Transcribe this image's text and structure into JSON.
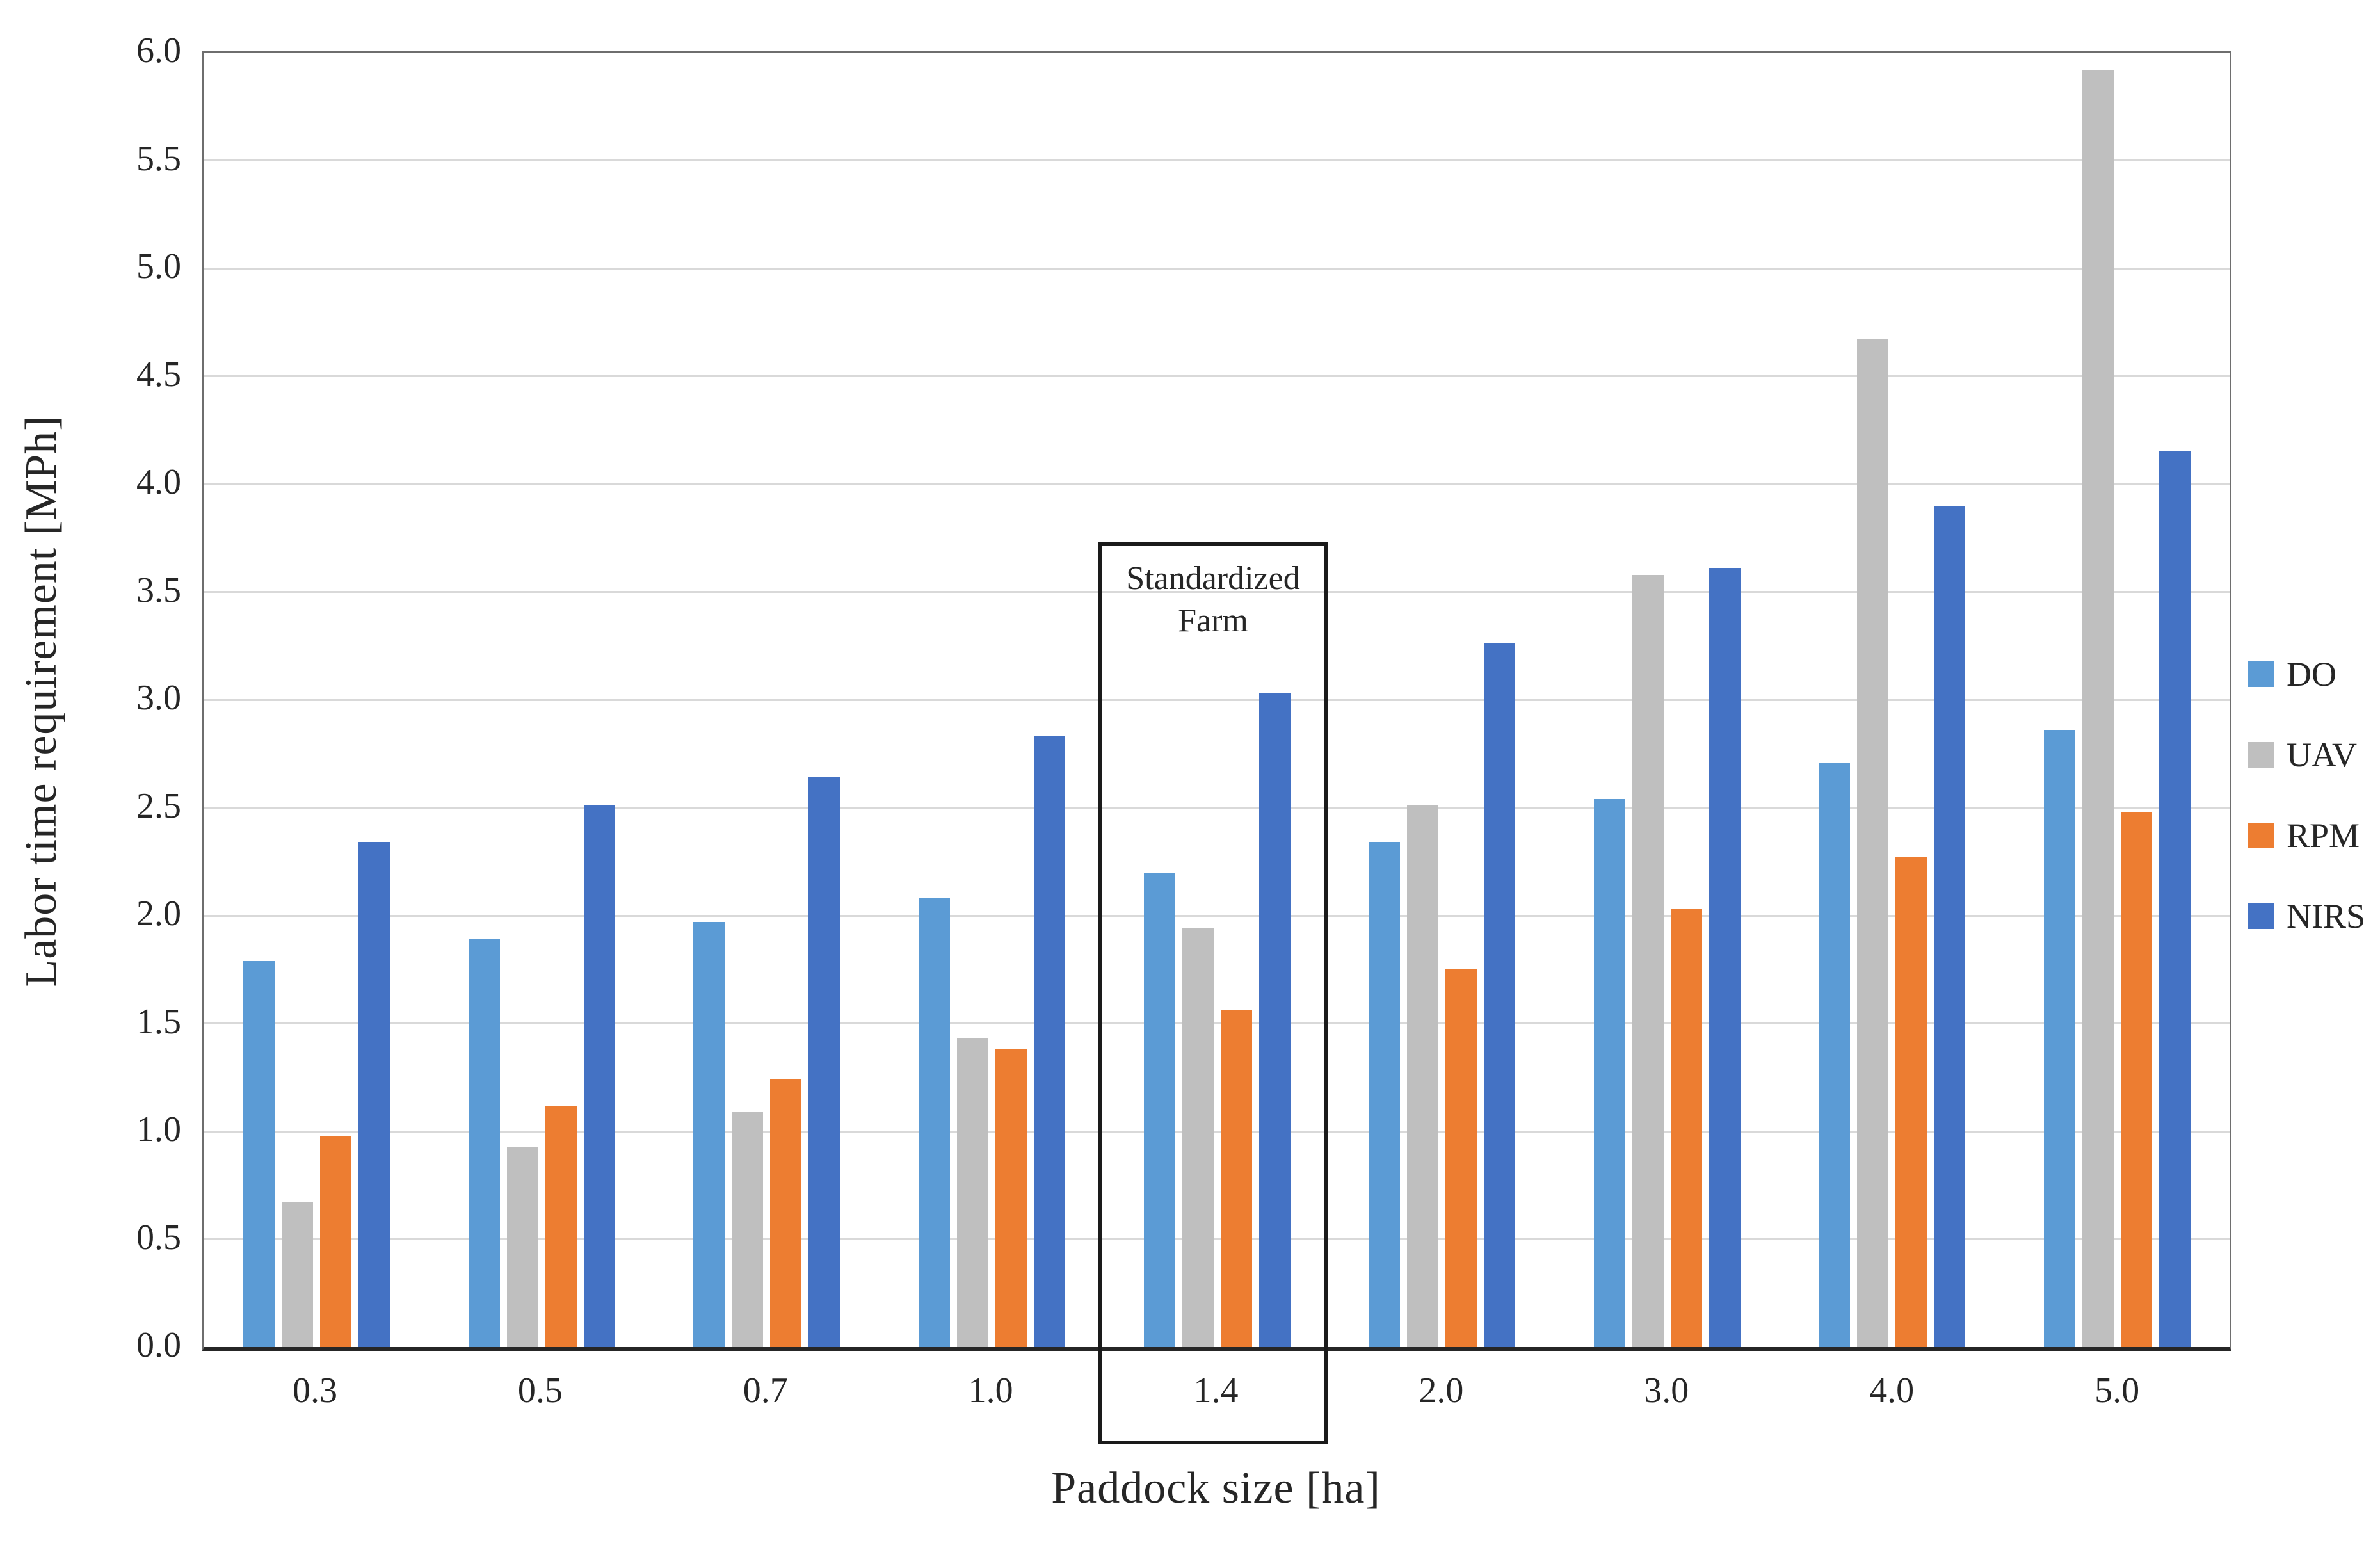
{
  "chart_data": {
    "type": "bar",
    "title": "",
    "xlabel": "Paddock size [ha]",
    "ylabel": "Labor time requirement [MPh]",
    "categories": [
      "0.3",
      "0.5",
      "0.7",
      "1.0",
      "1.4",
      "2.0",
      "3.0",
      "4.0",
      "5.0"
    ],
    "series": [
      {
        "name": "DO",
        "color": "#5b9bd5",
        "values": [
          1.79,
          1.89,
          1.97,
          2.08,
          2.2,
          2.34,
          2.54,
          2.71,
          2.86
        ]
      },
      {
        "name": "UAV",
        "color": "#bfbfbf",
        "values": [
          0.67,
          0.93,
          1.09,
          1.43,
          1.94,
          2.51,
          3.58,
          4.67,
          5.92
        ]
      },
      {
        "name": "RPM",
        "color": "#ed7d31",
        "values": [
          0.98,
          1.12,
          1.24,
          1.38,
          1.56,
          1.75,
          2.03,
          2.27,
          2.48
        ]
      },
      {
        "name": "NIRS",
        "color": "#4472c4",
        "values": [
          2.34,
          2.51,
          2.64,
          2.83,
          3.03,
          3.26,
          3.61,
          3.9,
          4.15
        ]
      }
    ],
    "ylim": [
      0,
      6
    ],
    "ytick_step": 0.5,
    "yticks": [
      "0.0",
      "0.5",
      "1.0",
      "1.5",
      "2.0",
      "2.5",
      "3.0",
      "3.5",
      "4.0",
      "4.5",
      "5.0",
      "5.5",
      "6.0"
    ],
    "grid": "horizontal",
    "legend_position": "right",
    "annotation": {
      "line1": "Standardized",
      "line2": "Farm",
      "target_category": "1.4",
      "box_top_value": 3.72,
      "box_color": "#1a1a1a"
    }
  }
}
